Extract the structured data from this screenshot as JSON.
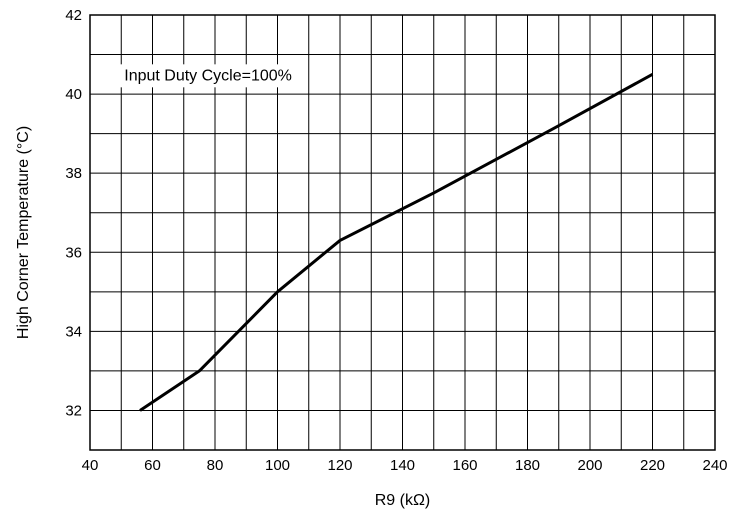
{
  "chart_data": {
    "type": "line",
    "title": "",
    "xlabel": "R9 (kΩ)",
    "ylabel": "High Corner Temperature (°C)",
    "xlim": [
      40,
      240
    ],
    "ylim": [
      31,
      42
    ],
    "xticks": [
      40,
      60,
      80,
      100,
      120,
      140,
      160,
      180,
      200,
      220,
      240
    ],
    "yticks": [
      32,
      34,
      36,
      38,
      40,
      42
    ],
    "x_grid_step": 10,
    "y_grid_step": 1,
    "grid": true,
    "annotation": "Input Duty Cycle=100%",
    "series": [
      {
        "x": [
          56,
          75,
          100,
          120,
          150,
          190,
          220
        ],
        "y": [
          32.0,
          33.0,
          35.0,
          36.3,
          37.5,
          39.2,
          40.5
        ]
      }
    ]
  }
}
